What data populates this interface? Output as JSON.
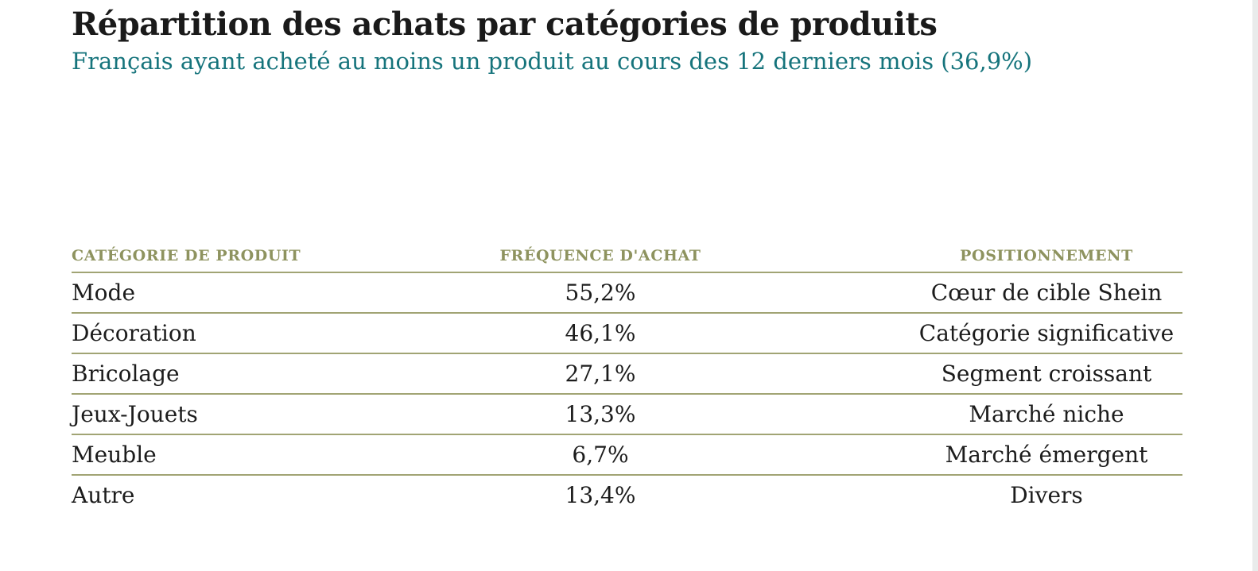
{
  "header": {
    "title": "Répartition des achats par catégories de produits",
    "subtitle": "Français ayant acheté au moins un produit au cours des 12 derniers mois (36,9%)"
  },
  "colors": {
    "title_text": "#1a1a1a",
    "subtitle_teal": "#16747c",
    "header_olive": "#8e935f",
    "separator_olive": "#a1a474",
    "scrollbar_gray": "#e9ebeb",
    "background": "#ffffff"
  },
  "table": {
    "headers": [
      {
        "label": "CATÉGORIE DE PRODUIT"
      },
      {
        "label": "FRÉQUENCE D'ACHAT"
      },
      {
        "label": "POSITIONNEMENT"
      }
    ],
    "rows": [
      {
        "category": "Mode",
        "frequency": "55,2%",
        "positioning": "Cœur de cible Shein"
      },
      {
        "category": "Décoration",
        "frequency": "46,1%",
        "positioning": "Catégorie significative"
      },
      {
        "category": "Bricolage",
        "frequency": "27,1%",
        "positioning": "Segment croissant"
      },
      {
        "category": "Jeux-Jouets",
        "frequency": "13,3%",
        "positioning": "Marché niche"
      },
      {
        "category": "Meuble",
        "frequency": "6,7%",
        "positioning": "Marché émergent"
      },
      {
        "category": "Autre",
        "frequency": "13,4%",
        "positioning": "Divers"
      }
    ]
  },
  "chart_data": {
    "type": "table",
    "title": "Répartition des achats par catégories de produits",
    "subtitle": "Français ayant acheté au moins un produit au cours des 12 derniers mois (36,9%)",
    "columns": [
      "CATÉGORIE DE PRODUIT",
      "FRÉQUENCE D'ACHAT",
      "POSITIONNEMENT"
    ],
    "categories": [
      "Mode",
      "Décoration",
      "Bricolage",
      "Jeux-Jouets",
      "Meuble",
      "Autre"
    ],
    "values_percent": [
      55.2,
      46.1,
      27.1,
      13.3,
      6.7,
      13.4
    ],
    "positioning_labels": [
      "Cœur de cible Shein",
      "Catégorie significative",
      "Segment croissant",
      "Marché niche",
      "Marché émergent",
      "Divers"
    ],
    "population_share_percent": 36.9
  }
}
